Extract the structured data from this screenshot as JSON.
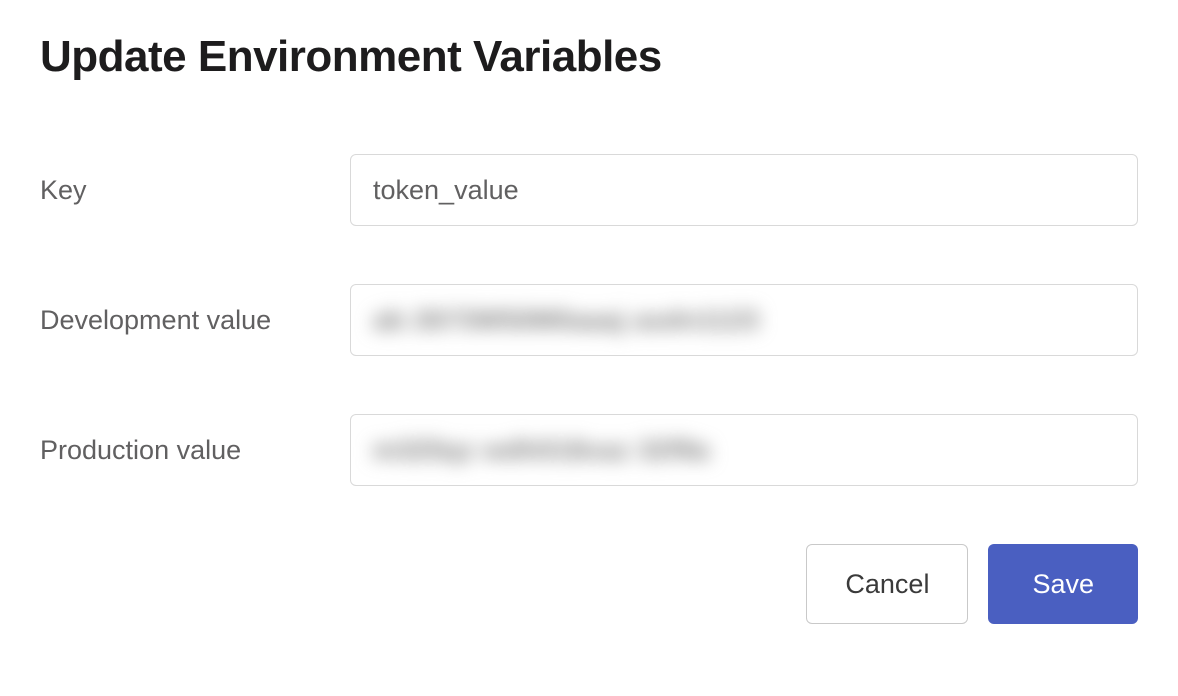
{
  "title": "Update Environment Variables",
  "fields": {
    "key": {
      "label": "Key",
      "value": "token_value"
    },
    "development": {
      "label": "Development value",
      "blurred_placeholder": "ab 2673W50M0aaaj asdn1123"
    },
    "production": {
      "label": "Production value",
      "blurred_placeholder": "m325qz wdh018xaz 32f9a"
    }
  },
  "buttons": {
    "cancel": "Cancel",
    "save": "Save"
  },
  "colors": {
    "primary": "#4a5fc1",
    "text": "#1d1c1d",
    "label": "#616061",
    "border": "#d9d9d9",
    "background": "#ffffff"
  }
}
